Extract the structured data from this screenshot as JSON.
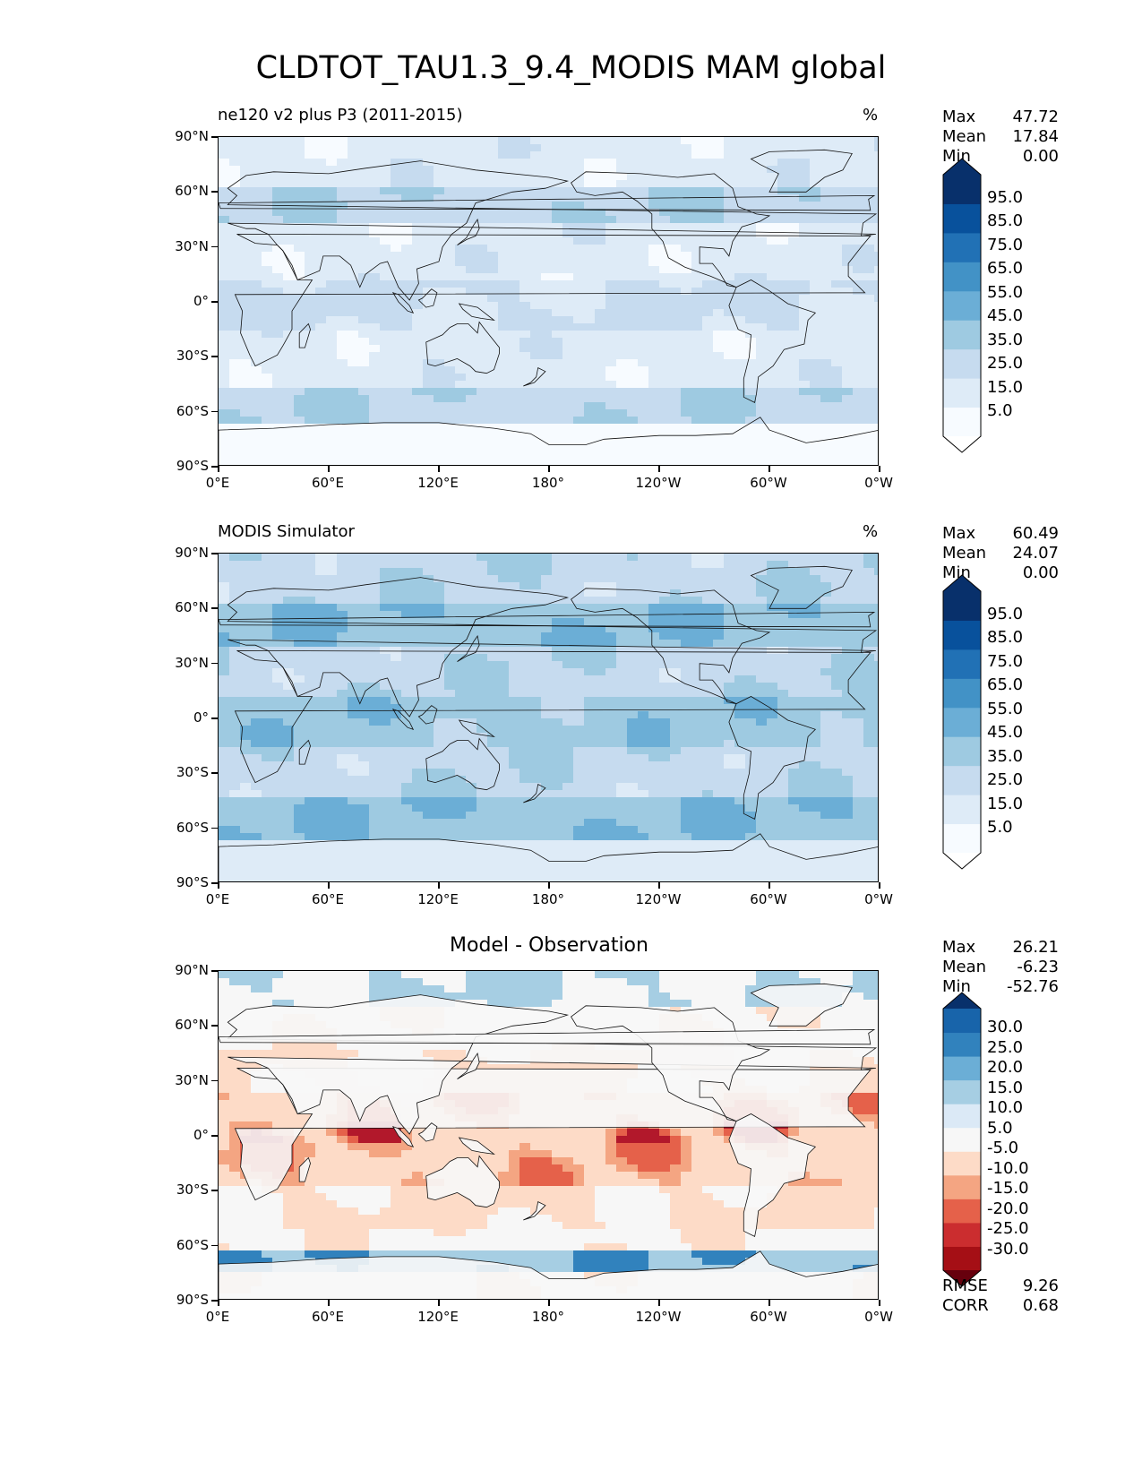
{
  "title": "CLDTOT_TAU1.3_9.4_MODIS MAM global",
  "panels": [
    {
      "title": "ne120 v2 plus P3 (2011-2015)",
      "units": "%",
      "stats": [
        {
          "label": "Max",
          "value": "47.72"
        },
        {
          "label": "Mean",
          "value": "17.84"
        },
        {
          "label": "Min",
          "value": "0.00"
        }
      ],
      "colorbar": {
        "labels": [
          "95.0",
          "85.0",
          "75.0",
          "65.0",
          "55.0",
          "45.0",
          "35.0",
          "25.0",
          "15.0",
          "5.0"
        ],
        "colors": [
          "#f7fbff",
          "#deebf7",
          "#c6dbef",
          "#9ecae1",
          "#6baed6",
          "#4292c6",
          "#2171b5",
          "#08519c",
          "#08306b"
        ],
        "under": "#ffffff",
        "over": "#08306b"
      },
      "field_colors": [
        "#f7fbff",
        "#deebf7",
        "#c6dbef",
        "#9ecae1"
      ]
    },
    {
      "title": "MODIS Simulator",
      "units": "%",
      "stats": [
        {
          "label": "Max",
          "value": "60.49"
        },
        {
          "label": "Mean",
          "value": "24.07"
        },
        {
          "label": "Min",
          "value": "0.00"
        }
      ],
      "colorbar": {
        "labels": [
          "95.0",
          "85.0",
          "75.0",
          "65.0",
          "55.0",
          "45.0",
          "35.0",
          "25.0",
          "15.0",
          "5.0"
        ],
        "colors": [
          "#f7fbff",
          "#deebf7",
          "#c6dbef",
          "#9ecae1",
          "#6baed6",
          "#4292c6",
          "#2171b5",
          "#08519c",
          "#08306b"
        ],
        "under": "#ffffff",
        "over": "#08306b"
      },
      "field_colors": [
        "#deebf7",
        "#c6dbef",
        "#9ecae1",
        "#6baed6"
      ]
    },
    {
      "title": "Model - Observation",
      "units": "",
      "stats": [
        {
          "label": "Max",
          "value": "26.21"
        },
        {
          "label": "Mean",
          "value": "-6.23"
        },
        {
          "label": "Min",
          "value": "-52.76"
        }
      ],
      "extra_stats": [
        {
          "label": "RMSE",
          "value": "9.26"
        },
        {
          "label": "CORR",
          "value": "0.68"
        }
      ],
      "colorbar": {
        "labels": [
          "30.0",
          "25.0",
          "20.0",
          "15.0",
          "10.0",
          "5.0",
          "-5.0",
          "-10.0",
          "-15.0",
          "-20.0",
          "-25.0",
          "-30.0"
        ],
        "colors": [
          "#a50f15",
          "#cb2d2f",
          "#e5614a",
          "#f4a582",
          "#fddbc7",
          "#f7f7f7",
          "#dbe9f6",
          "#a6cee3",
          "#6baed6",
          "#3182bd",
          "#1864aa"
        ],
        "under": "#67000d",
        "over": "#08306b"
      },
      "field_colors": [
        "#f7f7f7",
        "#fddbc7",
        "#f4a582",
        "#e5614a",
        "#b2182b",
        "#a6cee3",
        "#3182bd"
      ]
    }
  ],
  "axes": {
    "y_ticks": [
      "90°N",
      "60°N",
      "30°N",
      "0°",
      "30°S",
      "60°S",
      "90°S"
    ],
    "x_ticks": [
      "0°E",
      "60°E",
      "120°E",
      "180°",
      "120°W",
      "60°W",
      "0°W"
    ]
  }
}
